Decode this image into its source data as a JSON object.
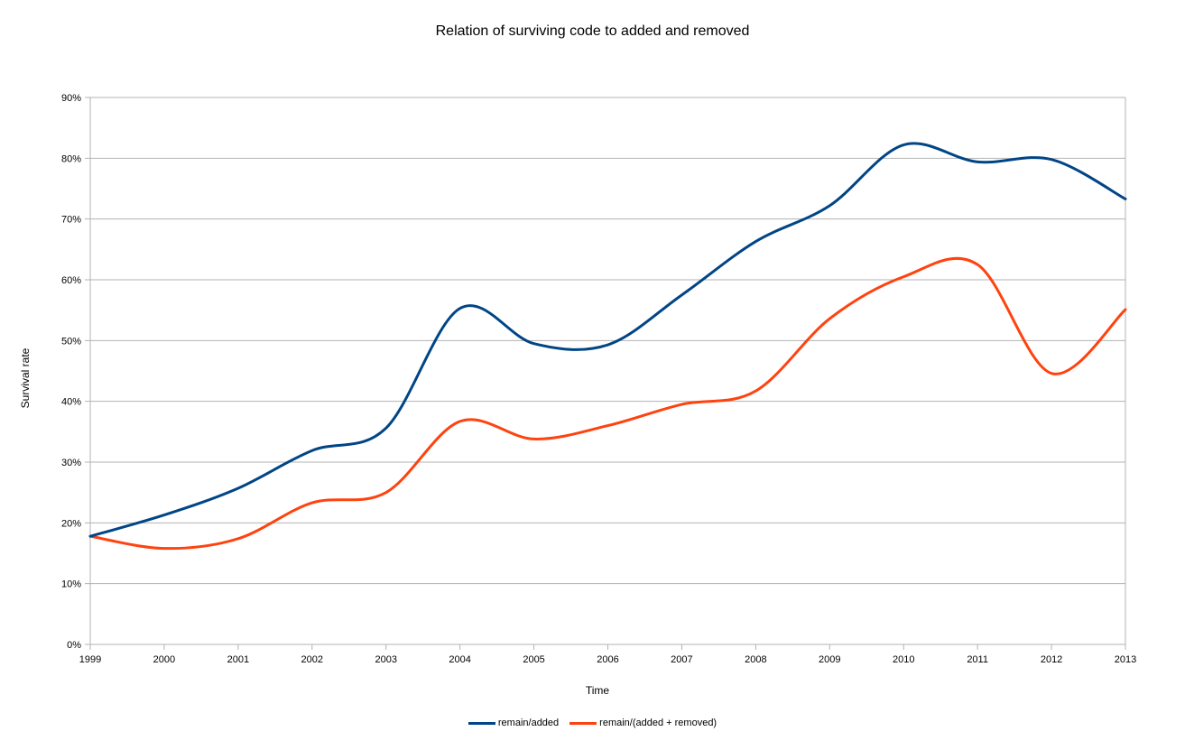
{
  "chart_data": {
    "type": "line",
    "title": "Relation of surviving code to added and removed",
    "xlabel": "Time",
    "ylabel": "Survival rate",
    "x": [
      "1999",
      "2000",
      "2001",
      "2002",
      "2003",
      "2004",
      "2005",
      "2006",
      "2007",
      "2008",
      "2009",
      "2010",
      "2011",
      "2012",
      "2013"
    ],
    "ylim": [
      0,
      90
    ],
    "y_ticks": [
      "0%",
      "10%",
      "20%",
      "30%",
      "40%",
      "50%",
      "60%",
      "70%",
      "80%",
      "90%"
    ],
    "grid": true,
    "legend_position": "bottom",
    "series": [
      {
        "name": "remain/added",
        "color": "#004586",
        "values": [
          17.8,
          21.3,
          25.7,
          31.9,
          35.6,
          55.3,
          49.5,
          49.3,
          57.5,
          66.3,
          72.2,
          82.2,
          79.4,
          79.8,
          73.3
        ]
      },
      {
        "name": "remain/(added + removed)",
        "color": "#ff420e",
        "values": [
          17.8,
          15.8,
          17.4,
          23.3,
          25.0,
          36.7,
          33.8,
          36.0,
          39.5,
          41.7,
          53.6,
          60.5,
          62.5,
          44.6,
          55.1
        ]
      }
    ]
  }
}
